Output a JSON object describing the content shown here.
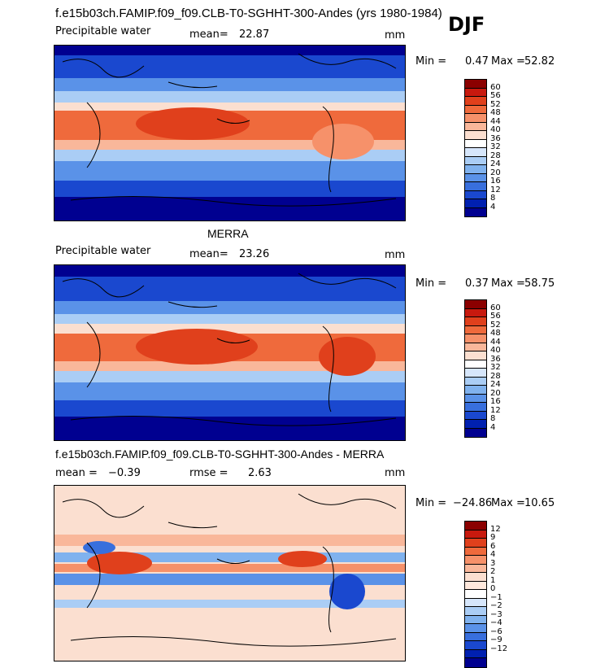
{
  "page": {
    "title": "f.e15b03ch.FAMIP.f09_f09.CLB-T0-SGHHT-300-Andes (yrs 1980-1984)",
    "season": "DJF"
  },
  "chart_data": [
    {
      "type": "heatmap",
      "title": "f.e15b03ch.FAMIP.f09_f09.CLB-T0-SGHHT-300-Andes (yrs 1980-1984)",
      "variable": "Precipitable water",
      "mean_label": "mean=",
      "mean": "22.87",
      "units": "mm",
      "min_label": "Min =",
      "min": "0.47",
      "max_label": "Max =",
      "max": "52.82",
      "levels": [
        "60",
        "56",
        "52",
        "48",
        "44",
        "40",
        "36",
        "32",
        "28",
        "24",
        "20",
        "16",
        "12",
        "8",
        "4"
      ],
      "colors": [
        "#8b0000",
        "#c8190e",
        "#e0401c",
        "#ef6a3c",
        "#f6916a",
        "#f9b79a",
        "#fbdfd0",
        "#ffffff",
        "#d6e6fb",
        "#aacdf5",
        "#80b2ee",
        "#5a92e8",
        "#386fdd",
        "#1a48cf",
        "#0020b0",
        "#000090"
      ]
    },
    {
      "type": "heatmap",
      "title": "MERRA",
      "variable": "Precipitable water",
      "mean_label": "mean=",
      "mean": "23.26",
      "units": "mm",
      "min_label": "Min =",
      "min": "0.37",
      "max_label": "Max =",
      "max": "58.75",
      "levels": [
        "60",
        "56",
        "52",
        "48",
        "44",
        "40",
        "36",
        "32",
        "28",
        "24",
        "20",
        "16",
        "12",
        "8",
        "4"
      ],
      "colors": [
        "#8b0000",
        "#c8190e",
        "#e0401c",
        "#ef6a3c",
        "#f6916a",
        "#f9b79a",
        "#fbdfd0",
        "#ffffff",
        "#d6e6fb",
        "#aacdf5",
        "#80b2ee",
        "#5a92e8",
        "#386fdd",
        "#1a48cf",
        "#0020b0",
        "#000090"
      ]
    },
    {
      "type": "heatmap",
      "title": "f.e15b03ch.FAMIP.f09_f09.CLB-T0-SGHHT-300-Andes - MERRA",
      "mean_label": "mean =",
      "mean": "−0.39",
      "rmse_label": "rmse =",
      "rmse": "2.63",
      "units": "mm",
      "min_label": "Min =",
      "min": "−24.86",
      "max_label": "Max =",
      "max": "10.65",
      "levels": [
        "12",
        "9",
        "6",
        "4",
        "3",
        "2",
        "1",
        "0",
        "−1",
        "−2",
        "−3",
        "−4",
        "−6",
        "−9",
        "−12"
      ],
      "colors": [
        "#8b0000",
        "#c8190e",
        "#e0401c",
        "#ef6a3c",
        "#f6916a",
        "#f9b79a",
        "#fbdfd0",
        "#ffe8dc",
        "#ffffff",
        "#d6e6fb",
        "#aacdf5",
        "#80b2ee",
        "#5a92e8",
        "#386fdd",
        "#1a48cf",
        "#0020b0",
        "#000090"
      ]
    }
  ]
}
